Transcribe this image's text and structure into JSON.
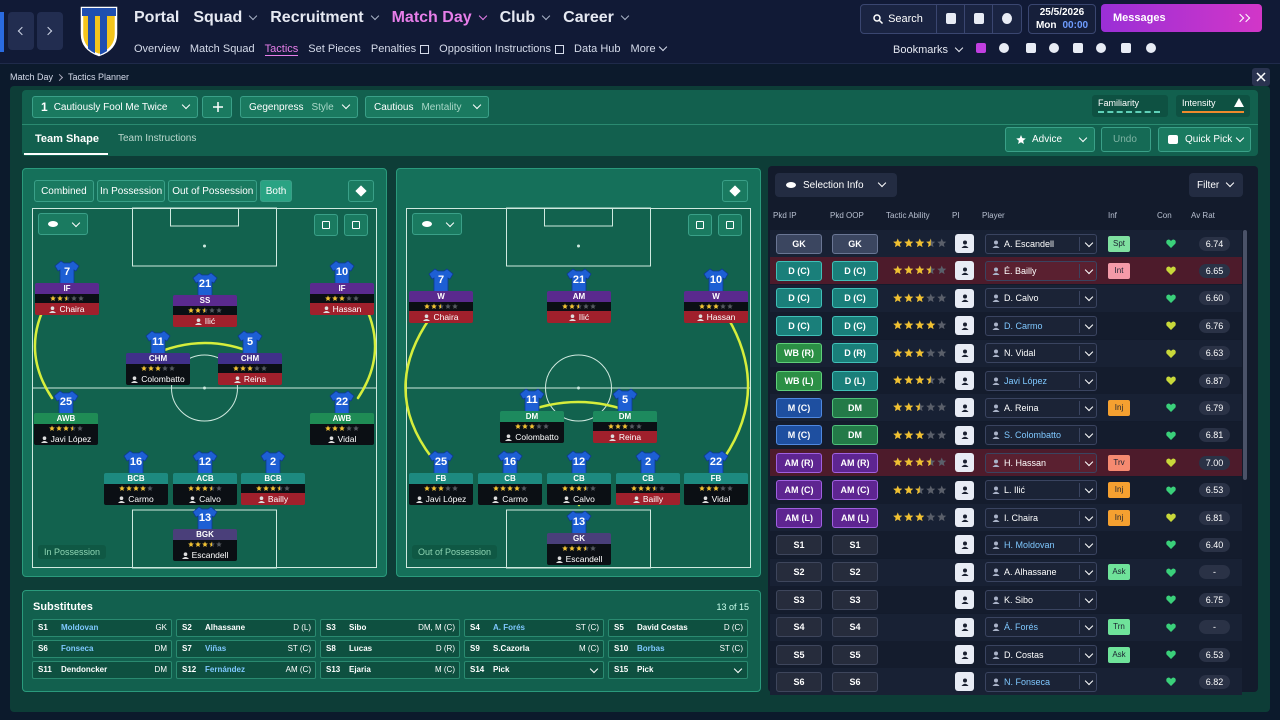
{
  "nav": {
    "menus": [
      "Portal",
      "Squad",
      "Recruitment",
      "Match Day",
      "Club",
      "Career"
    ],
    "submenu": [
      "Overview",
      "Match Squad",
      "Tactics",
      "Set Pieces",
      "Penalties",
      "Opposition Instructions",
      "Data Hub",
      "More"
    ],
    "search": "Search",
    "date": "25/5/2026",
    "day": "Mon",
    "time": "00:00",
    "messages": "Messages",
    "bookmarks": "Bookmarks"
  },
  "breadcrumb": [
    "Match Day",
    "Tactics Planner"
  ],
  "tactic_bar": {
    "slot": "1",
    "name": "Cautiously Fool Me Twice",
    "style": "Gegenpress",
    "style_label": "Style",
    "mentality": "Cautious",
    "mentality_label": "Mentality",
    "familiarity": "Familiarity",
    "intensity": "Intensity",
    "tabs": [
      "Team Shape",
      "Team Instructions"
    ],
    "advice": "Advice",
    "undo": "Undo",
    "quick_pick": "Quick Pick"
  },
  "view_filters": [
    "Combined",
    "In Possession",
    "Out of Possession",
    "Both"
  ],
  "pitches": [
    {
      "label": "In Possession",
      "players": [
        {
          "number": 7,
          "role": "IF",
          "name": "Chaira",
          "stars": 2.5
        },
        {
          "number": 21,
          "role": "SS",
          "name": "Ilić",
          "stars": 2.5
        },
        {
          "number": 10,
          "role": "IF",
          "name": "Hassan",
          "stars": 3
        },
        {
          "number": 11,
          "role": "CHM",
          "name": "Colombatto",
          "stars": 3
        },
        {
          "number": 5,
          "role": "CHM",
          "name": "Reina",
          "stars": 3
        },
        {
          "number": 25,
          "role": "AWB",
          "name": "Javi López",
          "stars": 3.5
        },
        {
          "number": 22,
          "role": "AWB",
          "name": "Vidal",
          "stars": 3
        },
        {
          "number": 16,
          "role": "BCB",
          "name": "Carmo",
          "stars": 4
        },
        {
          "number": 12,
          "role": "ACB",
          "name": "Calvo",
          "stars": 3.5
        },
        {
          "number": 2,
          "role": "BCB",
          "name": "Bailly",
          "stars": 3.5
        },
        {
          "number": 13,
          "role": "BGK",
          "name": "Escandell",
          "stars": 3.5
        }
      ]
    },
    {
      "label": "Out of Possession",
      "players": [
        {
          "number": 7,
          "role": "W",
          "name": "Chaira",
          "stars": 2.5
        },
        {
          "number": 21,
          "role": "AM",
          "name": "Ilić",
          "stars": 2.5
        },
        {
          "number": 10,
          "role": "W",
          "name": "Hassan",
          "stars": 3
        },
        {
          "number": 11,
          "role": "DM",
          "name": "Colombatto",
          "stars": 3
        },
        {
          "number": 5,
          "role": "DM",
          "name": "Reina",
          "stars": 3
        },
        {
          "number": 25,
          "role": "FB",
          "name": "Javi López",
          "stars": 3
        },
        {
          "number": 16,
          "role": "CB",
          "name": "Carmo",
          "stars": 4
        },
        {
          "number": 12,
          "role": "CB",
          "name": "Calvo",
          "stars": 3.5
        },
        {
          "number": 2,
          "role": "CB",
          "name": "Bailly",
          "stars": 3.5
        },
        {
          "number": 22,
          "role": "FB",
          "name": "Vidal",
          "stars": 3
        },
        {
          "number": 13,
          "role": "GK",
          "name": "Escandell",
          "stars": 3.5
        }
      ]
    }
  ],
  "substitutes": {
    "title": "Substitutes",
    "count": "13 of 15",
    "slots": [
      {
        "slot": "S1",
        "name": "Moldovan",
        "position": "GK"
      },
      {
        "slot": "S2",
        "name": "Alhassane",
        "position": "D (L)"
      },
      {
        "slot": "S3",
        "name": "Sibo",
        "position": "DM, M (C)"
      },
      {
        "slot": "S4",
        "name": "A. Forés",
        "position": "ST (C)"
      },
      {
        "slot": "S5",
        "name": "David Costas",
        "position": "D (C)"
      },
      {
        "slot": "S6",
        "name": "Fonseca",
        "position": "DM"
      },
      {
        "slot": "S7",
        "name": "Viñas",
        "position": "ST (C)"
      },
      {
        "slot": "S8",
        "name": "Lucas",
        "position": "D (R)"
      },
      {
        "slot": "S9",
        "name": "S.Cazorla",
        "position": "M (C)"
      },
      {
        "slot": "S10",
        "name": "Borbas",
        "position": "ST (C)"
      },
      {
        "slot": "S11",
        "name": "Dendoncker",
        "position": "DM"
      },
      {
        "slot": "S12",
        "name": "Fernández",
        "position": "AM (C)"
      },
      {
        "slot": "S13",
        "name": "Ejaria",
        "position": "M (C)"
      },
      {
        "slot": "S14",
        "name": "Pick"
      },
      {
        "slot": "S15",
        "name": "Pick"
      }
    ]
  },
  "selection": {
    "title": "Selection Info",
    "filter": "Filter",
    "headers": [
      "Pkd IP",
      "Pkd OOP",
      "Tactic Ability",
      "PI",
      "Player",
      "Inf",
      "Con",
      "Av Rat"
    ],
    "rows": [
      {
        "ip": "GK",
        "oop": "GK",
        "stars": 3.5,
        "player": "A. Escandell",
        "inf": "Spt",
        "rating": "6.74"
      },
      {
        "ip": "D (C)",
        "oop": "D (C)",
        "stars": 3.5,
        "player": "É. Bailly",
        "inf": "Int",
        "rating": "6.65"
      },
      {
        "ip": "D (C)",
        "oop": "D (C)",
        "stars": 3,
        "player": "D. Calvo",
        "rating": "6.60"
      },
      {
        "ip": "D (C)",
        "oop": "D (C)",
        "stars": 4,
        "player": "D. Carmo",
        "rating": "6.76"
      },
      {
        "ip": "WB (R)",
        "oop": "D (R)",
        "stars": 3,
        "player": "N. Vidal",
        "rating": "6.63"
      },
      {
        "ip": "WB (L)",
        "oop": "D (L)",
        "stars": 3.5,
        "player": "Javi López",
        "rating": "6.87"
      },
      {
        "ip": "M (C)",
        "oop": "DM",
        "stars": 2.5,
        "player": "A. Reina",
        "inf": "Inj",
        "rating": "6.79"
      },
      {
        "ip": "M (C)",
        "oop": "DM",
        "stars": 3,
        "player": "S. Colombatto",
        "rating": "6.81"
      },
      {
        "ip": "AM (R)",
        "oop": "AM (R)",
        "stars": 3.5,
        "player": "H. Hassan",
        "inf": "Trv",
        "rating": "7.00"
      },
      {
        "ip": "AM (C)",
        "oop": "AM (C)",
        "stars": 2.5,
        "player": "L. Ilić",
        "inf": "Inj",
        "rating": "6.53"
      },
      {
        "ip": "AM (L)",
        "oop": "AM (L)",
        "stars": 3,
        "player": "I. Chaira",
        "inf": "Inj",
        "rating": "6.81"
      },
      {
        "ip": "S1",
        "oop": "S1",
        "player": "H. Moldovan",
        "rating": "6.40"
      },
      {
        "ip": "S2",
        "oop": "S2",
        "player": "A. Alhassane",
        "inf": "Ask",
        "rating": "-"
      },
      {
        "ip": "S3",
        "oop": "S3",
        "player": "K. Sibo",
        "rating": "6.75"
      },
      {
        "ip": "S4",
        "oop": "S4",
        "player": "Á. Forés",
        "inf": "Trn",
        "rating": "-"
      },
      {
        "ip": "S5",
        "oop": "S5",
        "player": "D. Costas",
        "inf": "Ask",
        "rating": "6.53"
      },
      {
        "ip": "S6",
        "oop": "S6",
        "player": "N. Fonseca",
        "rating": "6.82"
      }
    ]
  }
}
